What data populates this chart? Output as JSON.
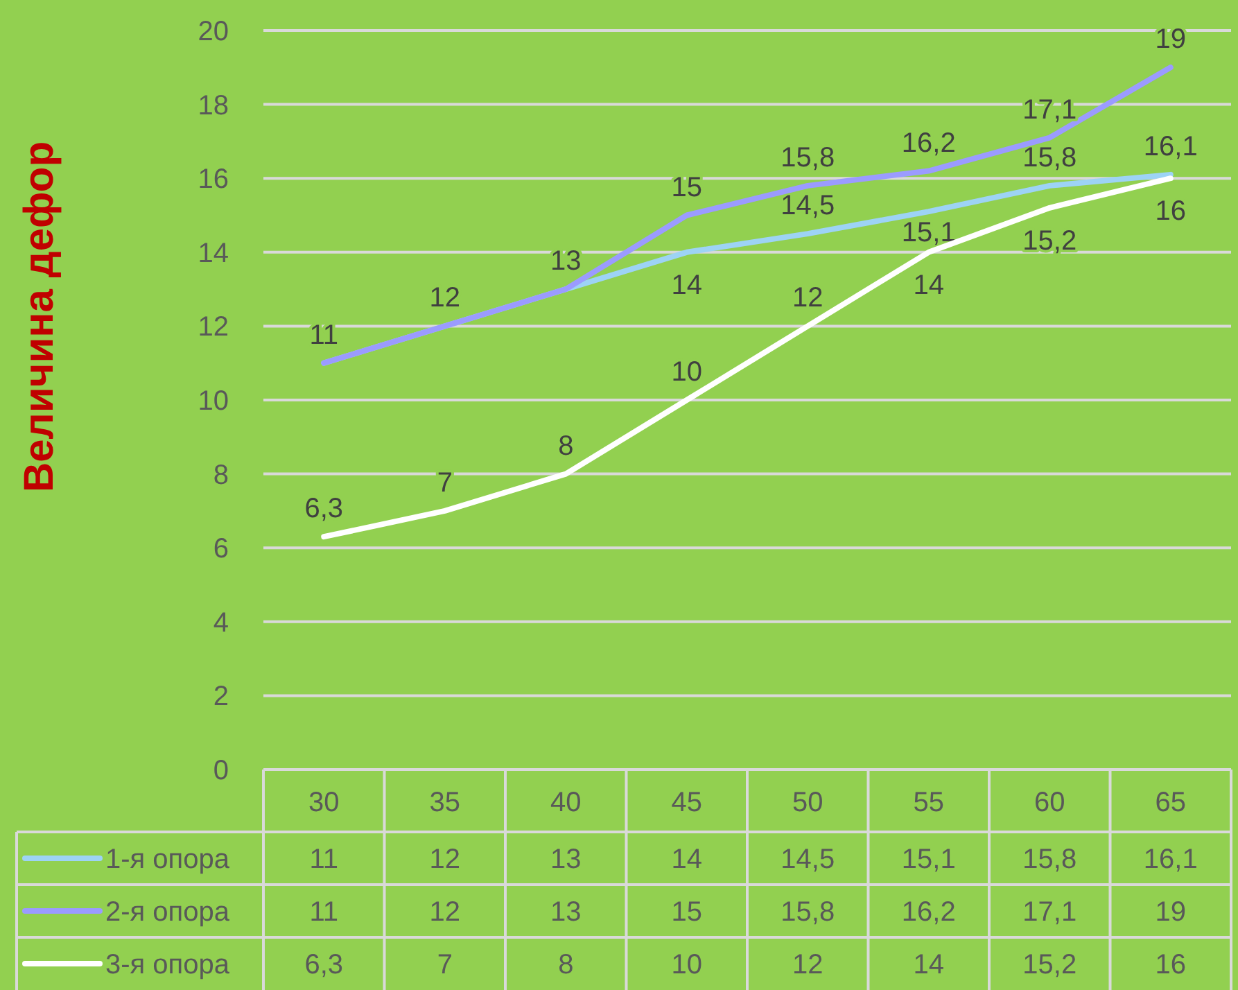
{
  "chart_data": {
    "type": "line",
    "ylabel": "Величина дефор",
    "categories": [
      "30",
      "35",
      "40",
      "45",
      "50",
      "55",
      "60",
      "65"
    ],
    "series": [
      {
        "name": "1-я опора",
        "color": "#9dd3f5",
        "values": [
          11,
          12,
          13,
          14,
          14.5,
          15.1,
          15.8,
          16.1
        ],
        "value_labels": [
          "11",
          "12",
          "13",
          "14",
          "14,5",
          "15,1",
          "15,8",
          "16,1"
        ]
      },
      {
        "name": "2-я опора",
        "color": "#9b9bff",
        "values": [
          11,
          12,
          13,
          15,
          15.8,
          16.2,
          17.1,
          19
        ],
        "value_labels": [
          "11",
          "12",
          "13",
          "15",
          "15,8",
          "16,2",
          "17,1",
          "19"
        ]
      },
      {
        "name": "3-я опора",
        "color": "#ffffff",
        "values": [
          6.3,
          7,
          8,
          10,
          12,
          14,
          15.2,
          16
        ],
        "value_labels": [
          "6,3",
          "7",
          "8",
          "10",
          "12",
          "14",
          "15,2",
          "16"
        ]
      }
    ],
    "ylim": [
      0,
      20
    ],
    "yticks": [
      0,
      2,
      4,
      6,
      8,
      10,
      12,
      14,
      16,
      18,
      20
    ],
    "grid": "y",
    "legend": "bottom",
    "marker": "none",
    "line_style": "solid"
  }
}
